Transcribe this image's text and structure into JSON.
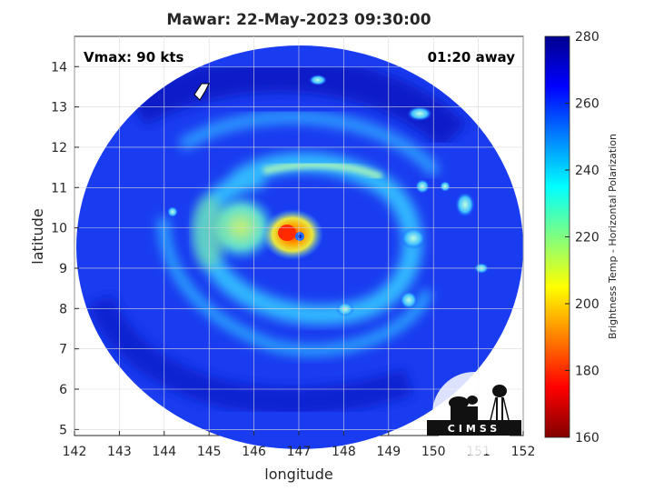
{
  "title": "Mawar: 22-May-2023 09:30:00",
  "overlay": {
    "vmax": "Vmax: 90 kts",
    "time_away": "01:20 away"
  },
  "logo_text": "CIMSS",
  "map": {
    "xlabel": "longitude",
    "ylabel": "latitude",
    "xlim": [
      142,
      152
    ],
    "ylim": [
      4.85,
      14.75
    ],
    "xticks": [
      "142",
      "143",
      "144",
      "145",
      "146",
      "147",
      "148",
      "149",
      "150",
      "151",
      "152"
    ],
    "yticks": [
      "5",
      "6",
      "7",
      "8",
      "9",
      "10",
      "11",
      "12",
      "13",
      "14"
    ],
    "storm_center": {
      "lon": 147.2,
      "lat": 9.8
    },
    "grid": true
  },
  "colorbar": {
    "label": "Brightness Temp - Horizontal Polarization",
    "range": [
      160,
      280
    ],
    "ticks": [
      "160",
      "180",
      "200",
      "220",
      "240",
      "260",
      "280"
    ],
    "colormap": [
      "#800000",
      "#ff0000",
      "#ff8000",
      "#ffff00",
      "#80ff80",
      "#00ffff",
      "#0080ff",
      "#0000ff",
      "#00008f"
    ]
  }
}
